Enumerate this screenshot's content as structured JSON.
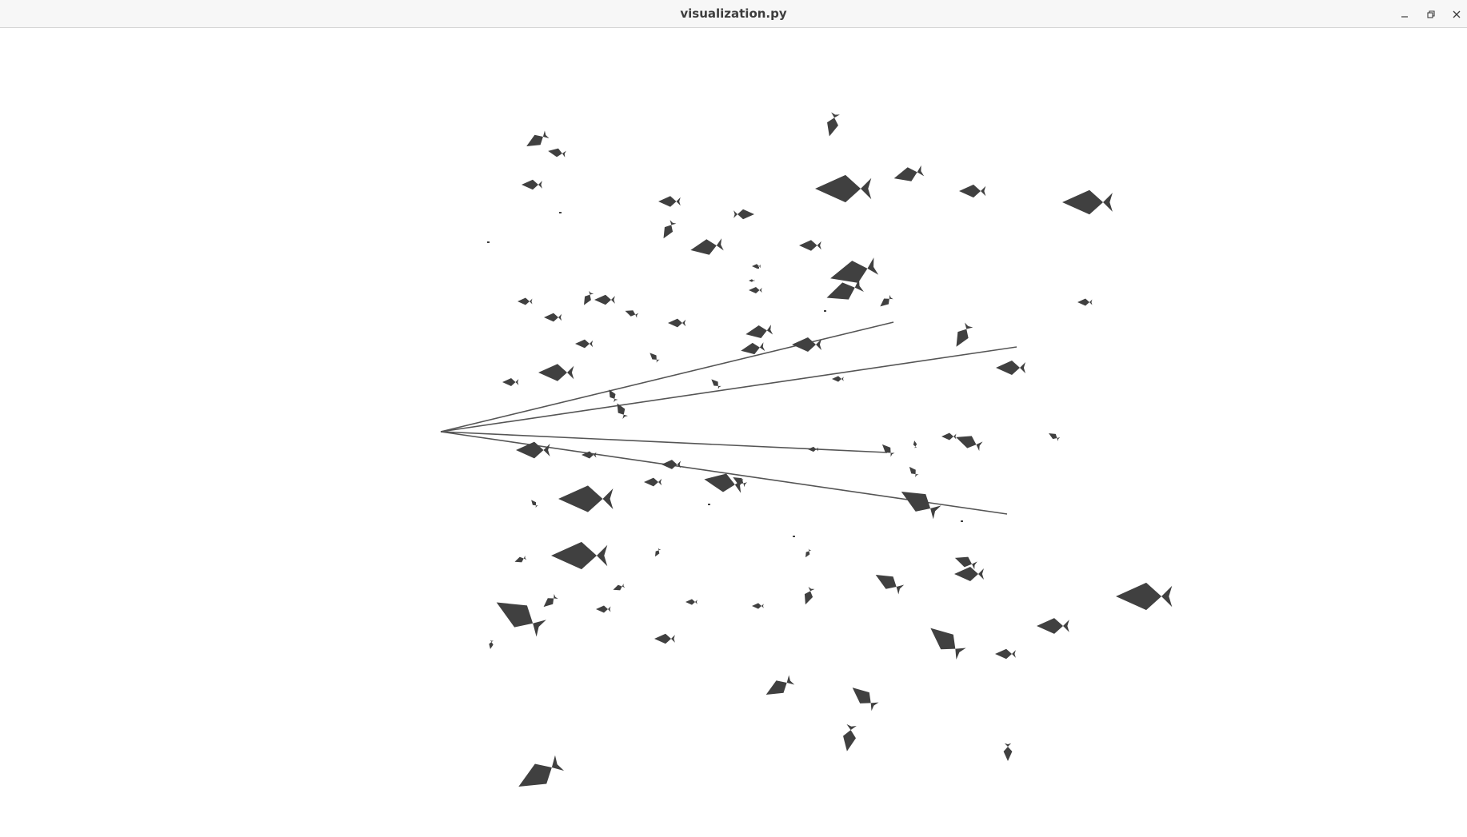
{
  "window": {
    "title": "visualization.py"
  },
  "controls": {
    "minimize_icon": "minimize-icon",
    "maximize_icon": "restore-icon",
    "close_icon": "close-icon"
  },
  "scene": {
    "fish_color": "#404040",
    "line_color": "#555555",
    "background": "#ffffff",
    "icon_color": "#3d3d3d"
  }
}
